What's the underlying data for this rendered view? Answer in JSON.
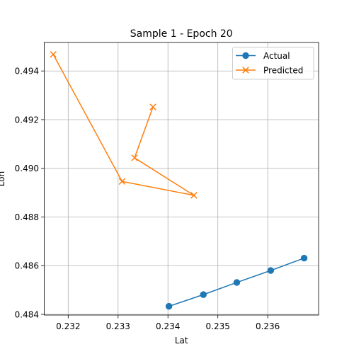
{
  "chart_data": {
    "type": "line",
    "title": "Sample 1 - Epoch 20",
    "xlabel": "Lat",
    "ylabel": "Lon",
    "xlim": [
      0.23152,
      0.23702
    ],
    "ylim": [
      0.48397,
      0.49517
    ],
    "grid": true,
    "legend_position": "top-right",
    "x_ticks": [
      0.232,
      0.233,
      0.234,
      0.235,
      0.236
    ],
    "x_tick_labels": [
      "0.232",
      "0.233",
      "0.234",
      "0.235",
      "0.236"
    ],
    "y_ticks": [
      0.484,
      0.486,
      0.488,
      0.49,
      0.492,
      0.494
    ],
    "y_tick_labels": [
      "0.484",
      "0.486",
      "0.488",
      "0.490",
      "0.492",
      "0.494"
    ],
    "series": [
      {
        "name": "Actual",
        "color": "#1f77b4",
        "marker": "circle",
        "points": [
          {
            "x": 0.23402,
            "y": 0.48433
          },
          {
            "x": 0.23471,
            "y": 0.48481
          },
          {
            "x": 0.23538,
            "y": 0.48531
          },
          {
            "x": 0.23606,
            "y": 0.4858
          },
          {
            "x": 0.23673,
            "y": 0.48631
          }
        ]
      },
      {
        "name": "Predicted",
        "color": "#ff7f0e",
        "marker": "x",
        "points": [
          {
            "x": 0.2317,
            "y": 0.49468
          },
          {
            "x": 0.23308,
            "y": 0.48946
          },
          {
            "x": 0.23452,
            "y": 0.48889
          },
          {
            "x": 0.23333,
            "y": 0.49043
          },
          {
            "x": 0.2337,
            "y": 0.49252
          }
        ]
      }
    ]
  }
}
